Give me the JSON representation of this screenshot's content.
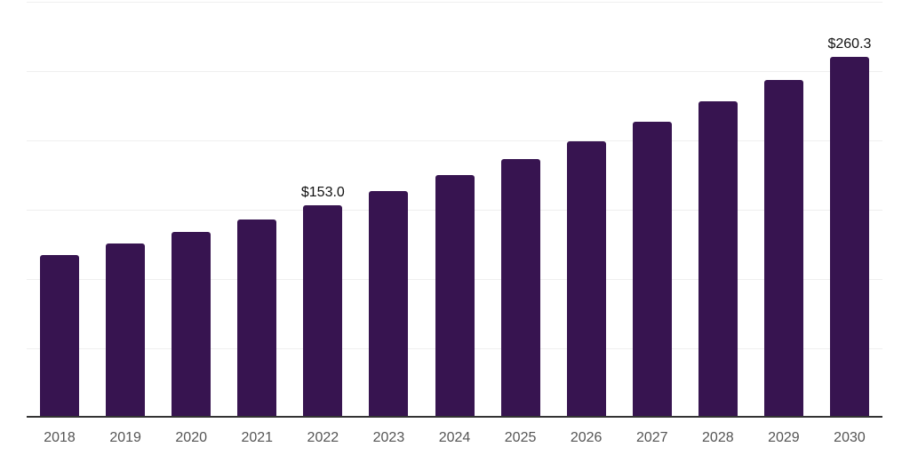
{
  "chart_data": {
    "type": "bar",
    "title": "",
    "categories": [
      "2018",
      "2019",
      "2020",
      "2021",
      "2022",
      "2023",
      "2024",
      "2025",
      "2026",
      "2027",
      "2028",
      "2029",
      "2030"
    ],
    "values": [
      117.3,
      125.4,
      134.0,
      143.2,
      153.0,
      163.5,
      174.8,
      186.8,
      199.6,
      213.3,
      228.0,
      243.6,
      260.3
    ],
    "labeled_points": [
      {
        "category": "2022",
        "label": "$153.0"
      },
      {
        "category": "2030",
        "label": "$260.3"
      }
    ],
    "xlabel": "",
    "ylabel": "",
    "ylim": [
      0,
      300
    ],
    "grid_step": 50,
    "grid": "horizontal",
    "legend": "none",
    "y_tick_labels_visible": false,
    "colors": {
      "bar": "#371450",
      "grid_line": "#efefef",
      "axis_line": "#333333",
      "tick_label": "#555555",
      "value_label": "#111111",
      "background": "#ffffff"
    }
  }
}
